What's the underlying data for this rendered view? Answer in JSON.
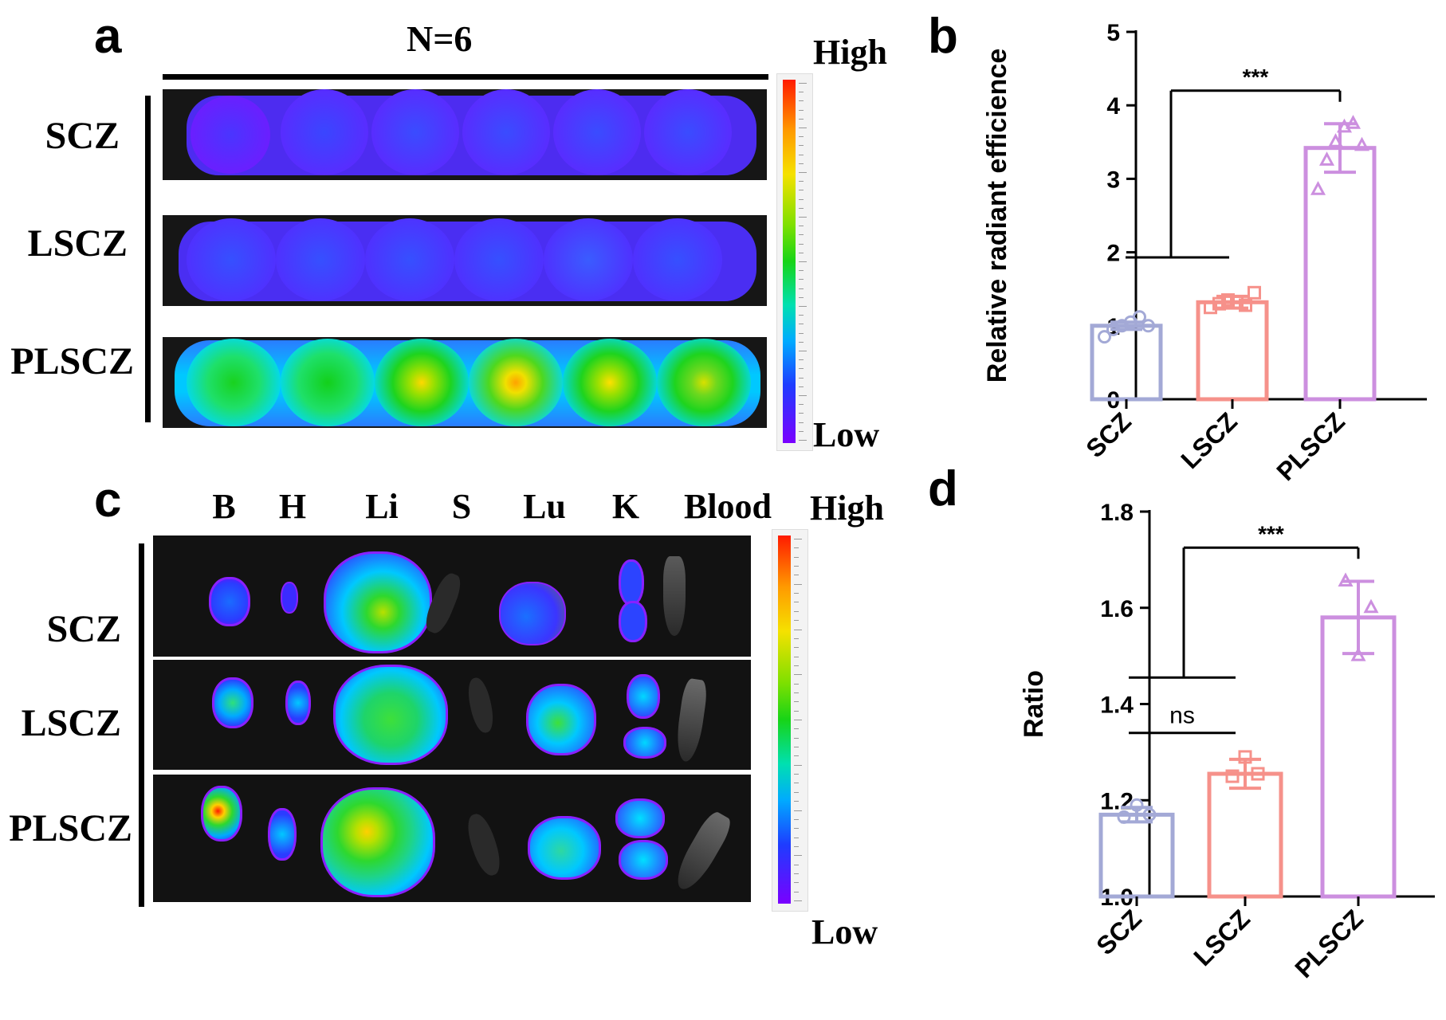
{
  "panels": {
    "a": {
      "letter": "a",
      "title": "N=6",
      "rows": [
        "SCZ",
        "LSCZ",
        "PLSCZ"
      ],
      "scale_high": "High",
      "scale_low": "Low"
    },
    "c": {
      "letter": "c",
      "organs": [
        "B",
        "H",
        "Li",
        "S",
        "Lu",
        "K",
        "Blood"
      ],
      "rows": [
        "SCZ",
        "LSCZ",
        "PLSCZ"
      ],
      "scale_high": "High",
      "scale_low": "Low"
    },
    "b": {
      "letter": "b"
    },
    "d": {
      "letter": "d"
    }
  },
  "colors": {
    "SCZ": "#a3a9d6",
    "LSCZ": "#f6918a",
    "PLSCZ": "#cc8fdf"
  },
  "chart_data": [
    {
      "panel": "b",
      "type": "bar",
      "categories": [
        "SCZ",
        "LSCZ",
        "PLSCZ"
      ],
      "values": [
        1.0,
        1.32,
        3.42
      ],
      "errors": [
        0.05,
        0.08,
        0.33
      ],
      "points": [
        [
          0.85,
          0.95,
          1.0,
          1.05,
          1.12,
          1.0
        ],
        [
          1.25,
          1.3,
          1.35,
          1.32,
          1.28,
          1.45
        ],
        [
          2.85,
          3.25,
          3.5,
          3.7,
          3.75,
          3.45
        ]
      ],
      "markers": [
        "circle",
        "square",
        "triangle"
      ],
      "ylabel": "Relative radiant efficience",
      "ylim": [
        0,
        5
      ],
      "yticks": [
        0,
        1,
        2,
        3,
        4,
        5
      ],
      "significance": [
        {
          "label": "***",
          "from": "SCZ+LSCZ",
          "to": "PLSCZ"
        }
      ],
      "grid": false
    },
    {
      "panel": "d",
      "type": "bar",
      "categories": [
        "SCZ",
        "LSCZ",
        "PLSCZ"
      ],
      "values": [
        1.17,
        1.255,
        1.58
      ],
      "errors": [
        0.015,
        0.03,
        0.075
      ],
      "points": [
        [
          1.165,
          1.19,
          1.17
        ],
        [
          1.25,
          1.29,
          1.255
        ],
        [
          1.655,
          1.5,
          1.6
        ]
      ],
      "markers": [
        "circle",
        "square",
        "triangle"
      ],
      "ylabel": "Ratio",
      "ylim": [
        1.0,
        1.8
      ],
      "yticks": [
        "1.0",
        "1.2",
        "1.4",
        "1.6",
        "1.8"
      ],
      "significance": [
        {
          "label": "ns",
          "from": "SCZ",
          "to": "LSCZ"
        },
        {
          "label": "***",
          "from": "SCZ+LSCZ",
          "to": "PLSCZ"
        }
      ],
      "grid": false
    }
  ]
}
